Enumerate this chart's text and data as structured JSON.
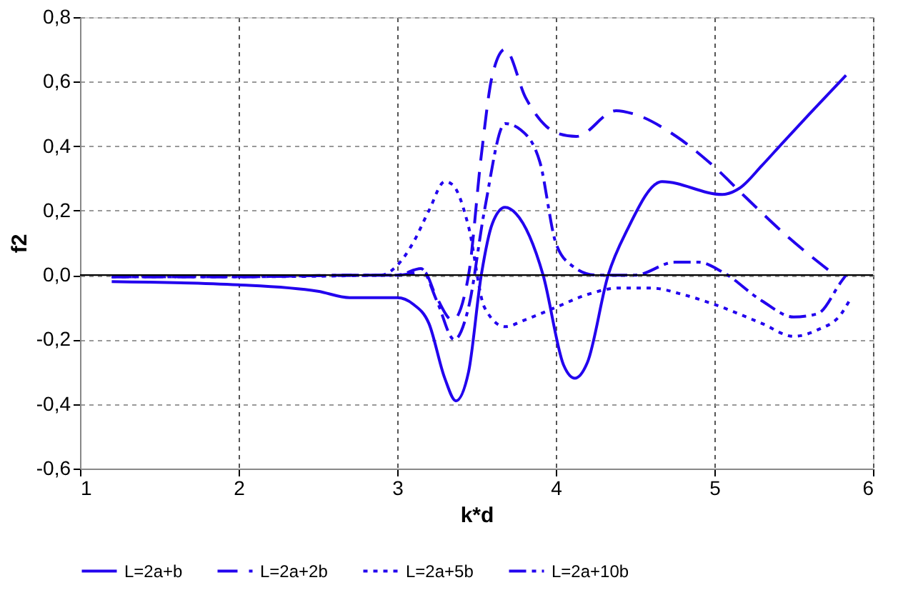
{
  "chart_data": {
    "type": "line",
    "xlabel": "k*d",
    "ylabel": "f2",
    "xlim": [
      1,
      6
    ],
    "ylim": [
      -0.6,
      0.8
    ],
    "xticks": [
      1,
      2,
      3,
      4,
      5,
      6
    ],
    "yticks": [
      {
        "value": -0.6,
        "label": "-0,6"
      },
      {
        "value": -0.4,
        "label": "-0,4"
      },
      {
        "value": -0.2,
        "label": "-0,2"
      },
      {
        "value": 0,
        "label": "0,0"
      },
      {
        "value": 0.2,
        "label": "0,2"
      },
      {
        "value": 0.4,
        "label": "0,4"
      },
      {
        "value": 0.6,
        "label": "0,6"
      },
      {
        "value": 0.8,
        "label": "0,8"
      }
    ],
    "grid": true,
    "legend": "bottom",
    "ref_lines": [
      {
        "axis": "y",
        "value": 0,
        "color": "#000000",
        "line_style": "solid"
      }
    ],
    "series": [
      {
        "name": "L=2a+b",
        "color": "#2200ee",
        "line_style": "solid",
        "x": [
          1.2,
          2.0,
          2.5,
          2.7,
          3.0,
          3.1,
          3.2,
          3.3,
          3.37,
          3.45,
          3.53,
          3.6,
          3.68,
          3.75,
          3.92,
          4.05,
          4.12,
          4.2,
          4.33,
          4.45,
          4.67,
          5.05,
          5.16,
          5.3,
          5.43,
          5.6,
          5.83
        ],
        "values": [
          -0.02,
          -0.03,
          -0.05,
          -0.07,
          -0.07,
          -0.09,
          -0.15,
          -0.32,
          -0.39,
          -0.3,
          0.0,
          0.16,
          0.21,
          0.19,
          0.0,
          -0.28,
          -0.32,
          -0.27,
          0.0,
          0.14,
          0.29,
          0.25,
          0.27,
          0.34,
          0.41,
          0.5,
          0.62
        ]
      },
      {
        "name": "L=2a+2b",
        "color": "#2200ee",
        "line_style": "longdash",
        "x": [
          1.2,
          2.0,
          2.8,
          3.0,
          3.17,
          3.24,
          3.35,
          3.45,
          3.53,
          3.6,
          3.68,
          3.81,
          4.01,
          4.13,
          4.38,
          4.49,
          4.76,
          4.99,
          5.2,
          5.46,
          5.76
        ],
        "values": [
          -0.005,
          -0.005,
          0.0,
          0.0,
          0.01,
          -0.06,
          -0.14,
          0.0,
          0.37,
          0.62,
          0.7,
          0.55,
          0.44,
          0.43,
          0.51,
          0.5,
          0.43,
          0.34,
          0.24,
          0.12,
          0.0
        ]
      },
      {
        "name": "L=2a+5b",
        "color": "#2200ee",
        "line_style": "dotted",
        "x": [
          1.2,
          2.0,
          2.9,
          3.0,
          3.1,
          3.2,
          3.3,
          3.35,
          3.45,
          3.55,
          3.68,
          3.8,
          4.0,
          4.2,
          4.4,
          4.6,
          4.8,
          5.05,
          5.3,
          5.5,
          5.65,
          5.8,
          5.85
        ],
        "values": [
          -0.005,
          -0.005,
          0.0,
          0.03,
          0.1,
          0.2,
          0.29,
          0.28,
          0.15,
          -0.1,
          -0.16,
          -0.14,
          -0.1,
          -0.06,
          -0.04,
          -0.04,
          -0.06,
          -0.1,
          -0.15,
          -0.19,
          -0.17,
          -0.12,
          -0.08
        ]
      },
      {
        "name": "L=2a+10b",
        "color": "#2200ee",
        "line_style": "dashdot",
        "x": [
          1.2,
          2.0,
          2.8,
          3.0,
          3.15,
          3.25,
          3.36,
          3.45,
          3.55,
          3.68,
          3.78,
          3.9,
          4.0,
          4.1,
          4.25,
          4.5,
          4.75,
          4.9,
          5.05,
          5.3,
          5.5,
          5.65,
          5.8,
          5.83
        ],
        "values": [
          -0.005,
          -0.005,
          0.0,
          0.0,
          0.02,
          -0.08,
          -0.2,
          -0.1,
          0.2,
          0.47,
          0.45,
          0.35,
          0.1,
          0.03,
          0.0,
          0.0,
          0.04,
          0.04,
          0.01,
          -0.08,
          -0.13,
          -0.12,
          -0.02,
          0.0
        ]
      }
    ]
  }
}
